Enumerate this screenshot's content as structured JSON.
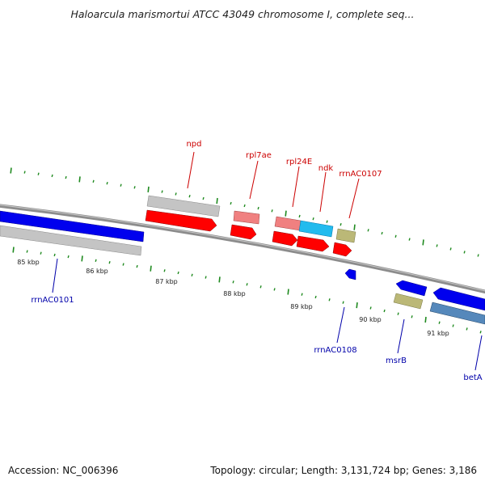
{
  "title": "Haloarcula marismortui ATCC 43049 chromosome I, complete seq...",
  "accession": "Accession: NC_006396",
  "summary": "Topology: circular; Length: 3,131,724 bp; Genes: 3,186",
  "colors": {
    "backbone": "#8c8c8c",
    "tick": "#1f8a1f",
    "label_forward": "#cc0000",
    "label_reverse": "#0000aa",
    "protein": "#ff0000",
    "rrna": "#f08080",
    "gray": "#bbbbbb",
    "blue": "#0000ee",
    "cyan": "#22bbee",
    "khaki": "#bbb877",
    "steel": "#5588bb"
  },
  "kbp_labels": [
    "85 kbp",
    "86 kbp",
    "87 kbp",
    "88 kbp",
    "89 kbp",
    "90 kbp",
    "91 kbp"
  ],
  "labels_forward": [
    "npd",
    "rpl7ae",
    "rpl24E",
    "ndk",
    "rrnAC0107"
  ],
  "labels_reverse": [
    "rrnAC0101",
    "rrnAC0108",
    "msrB",
    "betA"
  ]
}
